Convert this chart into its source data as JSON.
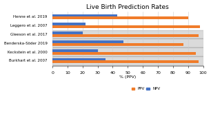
{
  "title": "Live Birth Prediction Rates",
  "categories": [
    "Henne et al. 2019",
    "Leggero et al. 2007",
    "Gleeson et al. 2017",
    "Benderska-Söder 2019",
    "Keckstein et al. 2000",
    "Burkhart et al. 2007"
  ],
  "ppv": [
    90,
    98,
    97,
    87,
    95,
    97
  ],
  "npv": [
    43,
    22,
    20,
    47,
    30,
    35
  ],
  "ppv_color": "#f07c2a",
  "npv_color": "#4472c4",
  "gray_rows": [
    2,
    3,
    4,
    5
  ],
  "gray_color": "#a0a0a0",
  "xlim": [
    0,
    100
  ],
  "xticks": [
    0,
    10,
    20,
    30,
    40,
    50,
    60,
    70,
    80,
    90,
    100
  ],
  "xlabel": "% (PPV)",
  "legend_labels": [
    "PPV",
    "NPV"
  ],
  "background_color": "#ffffff",
  "title_fontsize": 6.5,
  "tick_fontsize": 4.5,
  "label_fontsize": 4.0,
  "legend_fontsize": 4.0
}
